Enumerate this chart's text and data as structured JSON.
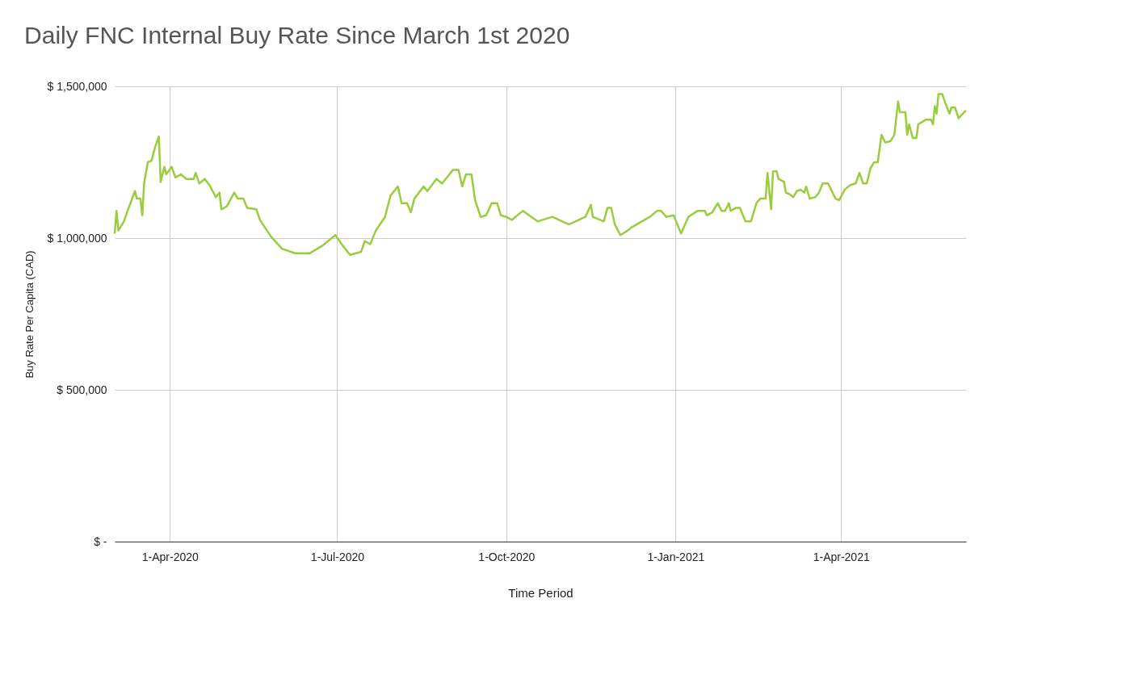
{
  "chart_data": {
    "type": "line",
    "title": "Daily FNC Internal Buy Rate Since March 1st 2020",
    "xlabel": "Time Period",
    "ylabel": "Buy Rate Per Capita (CAD)",
    "x": [
      "2020-03-02",
      "2020-03-03",
      "2020-03-04",
      "2020-03-07",
      "2020-03-09",
      "2020-03-13",
      "2020-03-14",
      "2020-03-16",
      "2020-03-17",
      "2020-03-18",
      "2020-03-20",
      "2020-03-22",
      "2020-03-24",
      "2020-03-26",
      "2020-03-27",
      "2020-03-29",
      "2020-03-30",
      "2020-04-02",
      "2020-04-04",
      "2020-04-07",
      "2020-04-10",
      "2020-04-14",
      "2020-04-15",
      "2020-04-17",
      "2020-04-20",
      "2020-04-23",
      "2020-04-26",
      "2020-04-28",
      "2020-04-29",
      "2020-05-02",
      "2020-05-06",
      "2020-05-08",
      "2020-05-11",
      "2020-05-13",
      "2020-05-18",
      "2020-05-20",
      "2020-05-26",
      "2020-06-01",
      "2020-06-08",
      "2020-06-16",
      "2020-06-23",
      "2020-06-30",
      "2020-07-04",
      "2020-07-08",
      "2020-07-14",
      "2020-07-16",
      "2020-07-19",
      "2020-07-22",
      "2020-07-27",
      "2020-07-30",
      "2020-08-03",
      "2020-08-05",
      "2020-08-08",
      "2020-08-10",
      "2020-08-12",
      "2020-08-17",
      "2020-08-19",
      "2020-08-24",
      "2020-08-27",
      "2020-08-29",
      "2020-09-02",
      "2020-09-05",
      "2020-09-07",
      "2020-09-09",
      "2020-09-12",
      "2020-09-14",
      "2020-09-17",
      "2020-09-20",
      "2020-09-23",
      "2020-09-26",
      "2020-09-28",
      "2020-10-01",
      "2020-10-04",
      "2020-10-10",
      "2020-10-18",
      "2020-10-26",
      "2020-11-04",
      "2020-11-13",
      "2020-11-16",
      "2020-11-17",
      "2020-11-23",
      "2020-11-25",
      "2020-11-27",
      "2020-11-29",
      "2020-12-02",
      "2020-12-06",
      "2020-12-08",
      "2020-12-18",
      "2020-12-22",
      "2020-12-24",
      "2020-12-27",
      "2020-12-31",
      "2021-01-04",
      "2021-01-08",
      "2021-01-13",
      "2021-01-17",
      "2021-01-18",
      "2021-01-21",
      "2021-01-24",
      "2021-01-26",
      "2021-01-28",
      "2021-01-30",
      "2021-01-31",
      "2021-02-03",
      "2021-02-05",
      "2021-02-08",
      "2021-02-11",
      "2021-02-14",
      "2021-02-16",
      "2021-02-19",
      "2021-02-20",
      "2021-02-22",
      "2021-02-23",
      "2021-02-25",
      "2021-02-26",
      "2021-03-01",
      "2021-03-02",
      "2021-03-04",
      "2021-03-06",
      "2021-03-08",
      "2021-03-10",
      "2021-03-12",
      "2021-03-13",
      "2021-03-15",
      "2021-03-18",
      "2021-03-20",
      "2021-03-22",
      "2021-03-25",
      "2021-03-29",
      "2021-03-31",
      "2021-04-03",
      "2021-04-06",
      "2021-04-09",
      "2021-04-11",
      "2021-04-13",
      "2021-04-15",
      "2021-04-17",
      "2021-04-19",
      "2021-04-21",
      "2021-04-23",
      "2021-04-25",
      "2021-04-28",
      "2021-04-30",
      "2021-05-02",
      "2021-05-03",
      "2021-05-06",
      "2021-05-07",
      "2021-05-08",
      "2021-05-10",
      "2021-05-12",
      "2021-05-13",
      "2021-05-17",
      "2021-05-20",
      "2021-05-21",
      "2021-05-22",
      "2021-05-23",
      "2021-05-24",
      "2021-05-26",
      "2021-05-28",
      "2021-05-30",
      "2021-05-31",
      "2021-06-02",
      "2021-06-04",
      "2021-06-07",
      "2021-06-08"
    ],
    "series": [
      {
        "color": "#9acd3c",
        "values": [
          1015000,
          1090000,
          1025000,
          1055000,
          1090000,
          1155000,
          1130000,
          1130000,
          1075000,
          1180000,
          1250000,
          1255000,
          1300000,
          1335000,
          1185000,
          1235000,
          1210000,
          1235000,
          1200000,
          1210000,
          1195000,
          1195000,
          1215000,
          1180000,
          1195000,
          1170000,
          1135000,
          1150000,
          1095000,
          1105000,
          1150000,
          1130000,
          1130000,
          1100000,
          1095000,
          1060000,
          1005000,
          965000,
          950000,
          950000,
          975000,
          1010000,
          975000,
          945000,
          955000,
          990000,
          980000,
          1025000,
          1070000,
          1140000,
          1170000,
          1115000,
          1115000,
          1085000,
          1130000,
          1170000,
          1155000,
          1195000,
          1180000,
          1195000,
          1225000,
          1225000,
          1170000,
          1210000,
          1210000,
          1125000,
          1070000,
          1075000,
          1115000,
          1115000,
          1075000,
          1070000,
          1060000,
          1090000,
          1055000,
          1070000,
          1045000,
          1070000,
          1110000,
          1070000,
          1055000,
          1100000,
          1100000,
          1045000,
          1010000,
          1025000,
          1035000,
          1070000,
          1090000,
          1090000,
          1070000,
          1075000,
          1015000,
          1070000,
          1090000,
          1090000,
          1075000,
          1085000,
          1115000,
          1090000,
          1090000,
          1115000,
          1090000,
          1100000,
          1100000,
          1055000,
          1055000,
          1115000,
          1130000,
          1130000,
          1215000,
          1095000,
          1220000,
          1220000,
          1195000,
          1185000,
          1150000,
          1145000,
          1135000,
          1155000,
          1160000,
          1150000,
          1170000,
          1130000,
          1135000,
          1150000,
          1180000,
          1180000,
          1130000,
          1125000,
          1160000,
          1175000,
          1180000,
          1215000,
          1180000,
          1180000,
          1230000,
          1250000,
          1250000,
          1340000,
          1315000,
          1320000,
          1340000,
          1450000,
          1415000,
          1415000,
          1340000,
          1375000,
          1330000,
          1330000,
          1375000,
          1390000,
          1390000,
          1375000,
          1435000,
          1410000,
          1475000,
          1475000,
          1440000,
          1410000,
          1430000,
          1430000,
          1395000,
          1415000,
          1420000
        ]
      }
    ],
    "xlim": [
      "2020-03-02",
      "2021-06-08"
    ],
    "xticks": [
      {
        "value": "2020-04-01",
        "label": "1-Apr-2020"
      },
      {
        "value": "2020-07-01",
        "label": "1-Jul-2020"
      },
      {
        "value": "2020-10-01",
        "label": "1-Oct-2020"
      },
      {
        "value": "2021-01-01",
        "label": "1-Jan-2021"
      },
      {
        "value": "2021-04-01",
        "label": "1-Apr-2021"
      }
    ],
    "ylim": [
      0,
      1500000
    ],
    "yticks": [
      {
        "value": 0,
        "label": "$ -"
      },
      {
        "value": 500000,
        "label": "$ 500,000"
      },
      {
        "value": 1000000,
        "label": "$ 1,000,000"
      },
      {
        "value": 1500000,
        "label": "$ 1,500,000"
      }
    ],
    "grid": true,
    "line_style": "solid",
    "marker": "none"
  }
}
